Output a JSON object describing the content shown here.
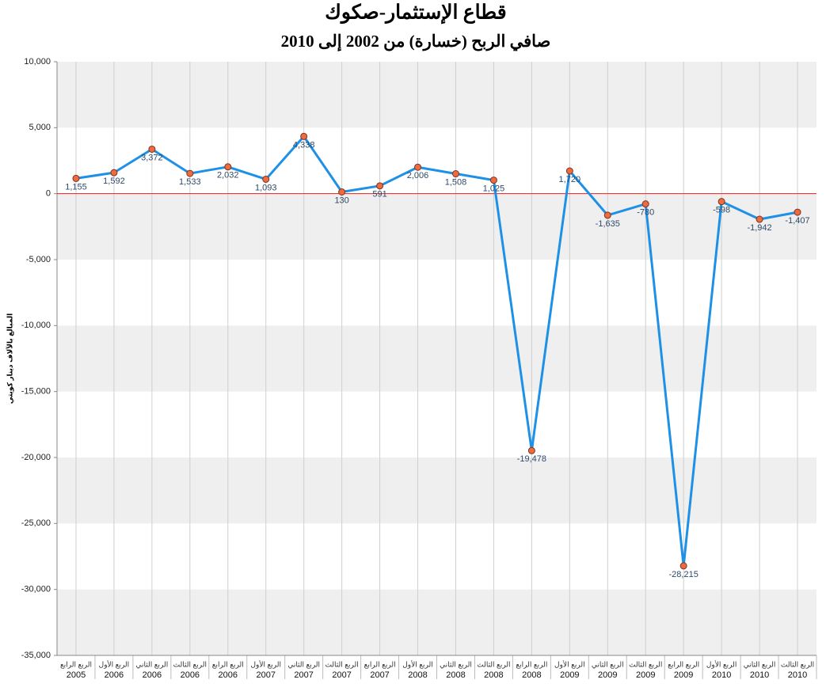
{
  "chart_data": {
    "type": "line",
    "title": "قطاع الإستثمار-صكوك",
    "subtitle": "صافي الربح (خسارة) من 2002 إلى 2010",
    "y_label": "المبالغ بالآلاف دينار كويتي",
    "categories": [
      [
        "الربع الرابع",
        "2005"
      ],
      [
        "الربع الأول",
        "2006"
      ],
      [
        "الربع الثاني",
        "2006"
      ],
      [
        "الربع الثالث",
        "2006"
      ],
      [
        "الربع الرابع",
        "2006"
      ],
      [
        "الربع الأول",
        "2007"
      ],
      [
        "الربع الثاني",
        "2007"
      ],
      [
        "الربع الثالث",
        "2007"
      ],
      [
        "الربع الرابع",
        "2007"
      ],
      [
        "الربع الأول",
        "2008"
      ],
      [
        "الربع الثاني",
        "2008"
      ],
      [
        "الربع الثالث",
        "2008"
      ],
      [
        "الربع الرابع",
        "2008"
      ],
      [
        "الربع الأول",
        "2009"
      ],
      [
        "الربع الثاني",
        "2009"
      ],
      [
        "الربع الثالث",
        "2009"
      ],
      [
        "الربع الرابع",
        "2009"
      ],
      [
        "الربع الأول",
        "2010"
      ],
      [
        "الربع الثاني",
        "2010"
      ],
      [
        "الربع الثالث",
        "2010"
      ]
    ],
    "values": [
      1155,
      1592,
      3372,
      1533,
      2032,
      1093,
      4338,
      130,
      591,
      2006,
      1508,
      1025,
      -19478,
      1720,
      -1635,
      -780,
      -28215,
      -598,
      -1942,
      -1407
    ],
    "value_labels": [
      "1,155",
      "1,592",
      "3,372",
      "1,533",
      "2,032",
      "1,093",
      "4,338",
      "130",
      "591",
      "2,006",
      "1,508",
      "1,025",
      "-19,478",
      "1,720",
      "-1,635",
      "-780",
      "-28,215",
      "-598",
      "-1,942",
      "-1,407"
    ],
    "color": "#1e90e6",
    "marker_color": "#f06a40",
    "zero_line_color": "#e02020",
    "ylim": [
      -35000,
      10000
    ],
    "yticks": [
      {
        "value": -35000,
        "label": "-35,000"
      },
      {
        "value": -30000,
        "label": "-30,000"
      },
      {
        "value": -25000,
        "label": "-25,000"
      },
      {
        "value": -20000,
        "label": "-20,000"
      },
      {
        "value": -15000,
        "label": "-15,000"
      },
      {
        "value": -10000,
        "label": "-10,000"
      },
      {
        "value": -5000,
        "label": "-5,000"
      },
      0,
      {
        "value": 5000,
        "label": "5,000"
      },
      {
        "value": 10000,
        "label": "10,000"
      }
    ],
    "grid": true
  }
}
